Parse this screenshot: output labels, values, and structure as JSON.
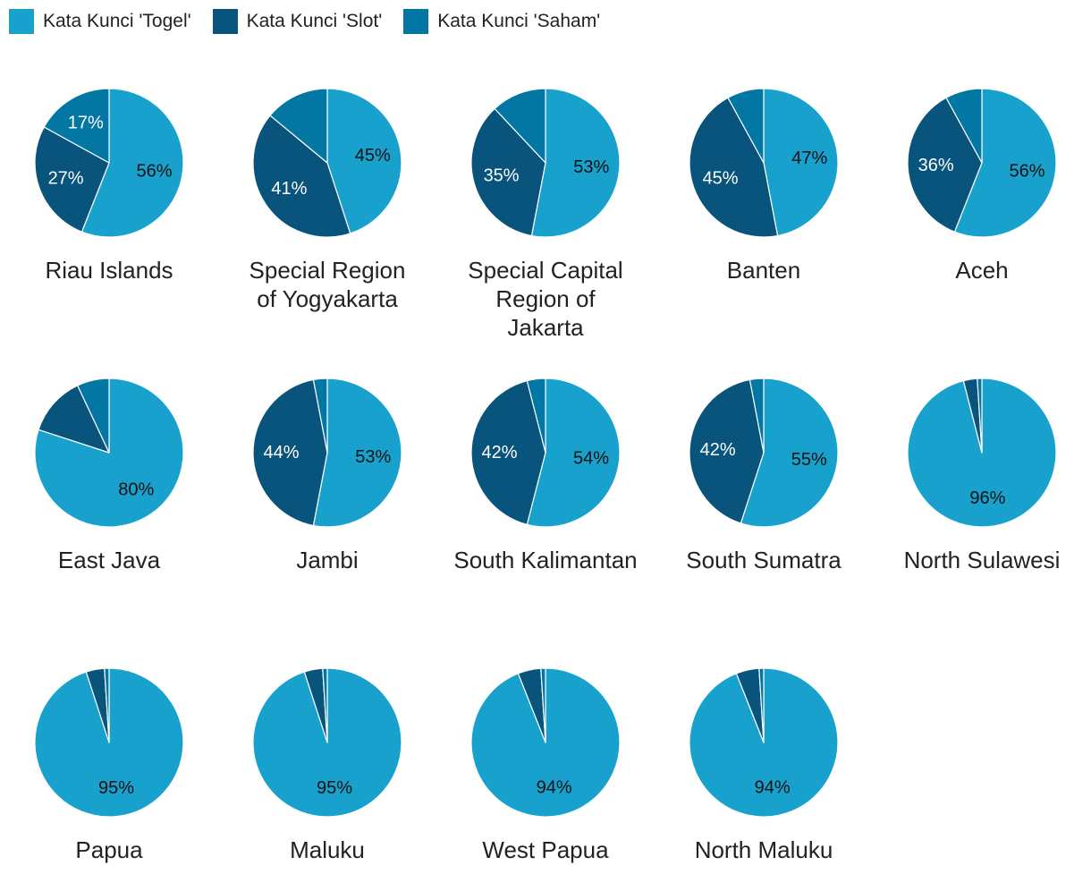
{
  "colors": {
    "togel": "#18a1cd",
    "slot": "#09547c",
    "saham": "#0277a3"
  },
  "legend": [
    {
      "label": "Kata Kunci 'Togel'",
      "color": "#18a1cd"
    },
    {
      "label": "Kata Kunci 'Slot'",
      "color": "#09547c"
    },
    {
      "label": "Kata Kunci 'Saham'",
      "color": "#0277a3"
    }
  ],
  "chart_data": {
    "type": "pie",
    "series_names": [
      "Kata Kunci 'Togel'",
      "Kata Kunci 'Slot'",
      "Kata Kunci 'Saham'"
    ],
    "pies": [
      {
        "label": "Riau Islands",
        "values": [
          56,
          27,
          17
        ],
        "shown_labels": [
          "56%",
          "27%",
          "17%"
        ]
      },
      {
        "label": "Special Region of Yogyakarta",
        "values": [
          45,
          41,
          14
        ],
        "shown_labels": [
          "45%",
          "41%",
          ""
        ]
      },
      {
        "label": "Special Capital Region of Jakarta",
        "values": [
          53,
          35,
          12
        ],
        "shown_labels": [
          "53%",
          "35%",
          ""
        ]
      },
      {
        "label": "Banten",
        "values": [
          47,
          45,
          8
        ],
        "shown_labels": [
          "47%",
          "45%",
          ""
        ]
      },
      {
        "label": "Aceh",
        "values": [
          56,
          36,
          8
        ],
        "shown_labels": [
          "56%",
          "36%",
          ""
        ]
      },
      {
        "label": "East Java",
        "values": [
          80,
          13,
          7
        ],
        "shown_labels": [
          "80%",
          "",
          ""
        ]
      },
      {
        "label": "Jambi",
        "values": [
          53,
          44,
          3
        ],
        "shown_labels": [
          "53%",
          "44%",
          ""
        ]
      },
      {
        "label": "South Kalimantan",
        "values": [
          54,
          42,
          4
        ],
        "shown_labels": [
          "54%",
          "42%",
          ""
        ]
      },
      {
        "label": "South Sumatra",
        "values": [
          55,
          42,
          3
        ],
        "shown_labels": [
          "55%",
          "42%",
          ""
        ]
      },
      {
        "label": "North Sulawesi",
        "values": [
          96,
          3,
          1
        ],
        "shown_labels": [
          "96%",
          "",
          ""
        ]
      },
      {
        "label": "Papua",
        "values": [
          95,
          4,
          1
        ],
        "shown_labels": [
          "95%",
          "",
          ""
        ]
      },
      {
        "label": "Maluku",
        "values": [
          95,
          4,
          1
        ],
        "shown_labels": [
          "95%",
          "",
          ""
        ]
      },
      {
        "label": "West Papua",
        "values": [
          94,
          5,
          1
        ],
        "shown_labels": [
          "94%",
          "",
          ""
        ]
      },
      {
        "label": "North Maluku",
        "values": [
          94,
          5,
          1
        ],
        "shown_labels": [
          "94%",
          "",
          ""
        ]
      }
    ]
  }
}
